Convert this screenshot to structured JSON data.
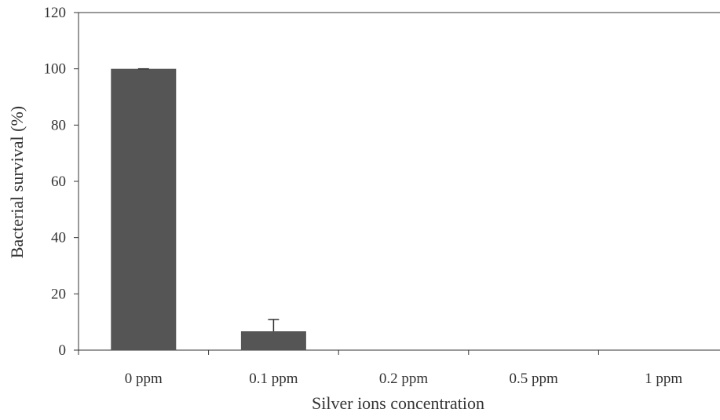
{
  "chart_data": {
    "type": "bar",
    "title": "",
    "xlabel": "Silver ions concentration",
    "ylabel": "Bacterial survival (%)",
    "categories": [
      "0 ppm",
      "0.1 ppm",
      "0.2 ppm",
      "0.5 ppm",
      "1 ppm"
    ],
    "values": [
      100,
      6.7,
      0.1,
      0.1,
      0.1
    ],
    "error_plus": [
      0,
      4.2,
      0,
      0,
      0
    ],
    "ylim": [
      0,
      120
    ],
    "yticks": [
      0,
      20,
      40,
      60,
      80,
      100,
      120
    ],
    "grid": false,
    "legend": "none",
    "bar_color": "#555555",
    "axis_color": "#333333"
  }
}
